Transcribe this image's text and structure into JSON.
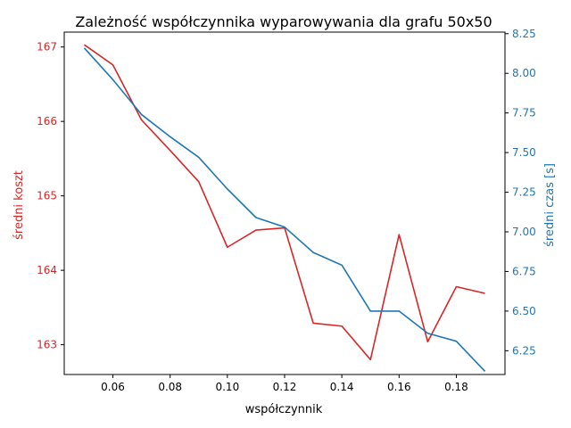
{
  "chart_data": {
    "type": "line",
    "title": "Zależność współczynnika wyparowywania dla grafu 50x50",
    "xlabel": "współczynnik",
    "xlim": [
      0.043,
      0.197
    ],
    "xticks": [
      0.06,
      0.08,
      0.1,
      0.12,
      0.14,
      0.16,
      0.18
    ],
    "xtick_labels": [
      "0.06",
      "0.08",
      "0.10",
      "0.12",
      "0.14",
      "0.16",
      "0.18"
    ],
    "x": [
      0.05,
      0.06,
      0.07,
      0.08,
      0.09,
      0.1,
      0.11,
      0.12,
      0.13,
      0.14,
      0.15,
      0.16,
      0.17,
      0.18,
      0.19
    ],
    "left_axis": {
      "label": "średni koszt",
      "color": "#d62728",
      "ylim": [
        162.6,
        167.2
      ],
      "ticks": [
        163,
        164,
        165,
        166,
        167
      ],
      "tick_labels": [
        "163",
        "164",
        "165",
        "166",
        "167"
      ]
    },
    "right_axis": {
      "label": "średni czas [s]",
      "color": "#1f77b4",
      "ylim": [
        6.1,
        8.26
      ],
      "ticks": [
        6.25,
        6.5,
        6.75,
        7.0,
        7.25,
        7.5,
        7.75,
        8.0,
        8.25
      ],
      "tick_labels": [
        "6.25",
        "6.50",
        "6.75",
        "7.00",
        "7.25",
        "7.50",
        "7.75",
        "8.00",
        "8.25"
      ]
    },
    "series": [
      {
        "axis": "left",
        "color": "#d62728",
        "values": [
          167.03,
          166.76,
          166.02,
          165.61,
          165.19,
          164.31,
          164.54,
          164.57,
          163.29,
          163.25,
          162.8,
          164.48,
          163.04,
          163.78,
          163.69
        ]
      },
      {
        "axis": "right",
        "color": "#1f77b4",
        "values": [
          8.16,
          7.96,
          7.74,
          7.6,
          7.47,
          7.27,
          7.09,
          7.03,
          6.87,
          6.79,
          6.5,
          6.5,
          6.36,
          6.31,
          6.12
        ]
      }
    ],
    "grid": false
  }
}
